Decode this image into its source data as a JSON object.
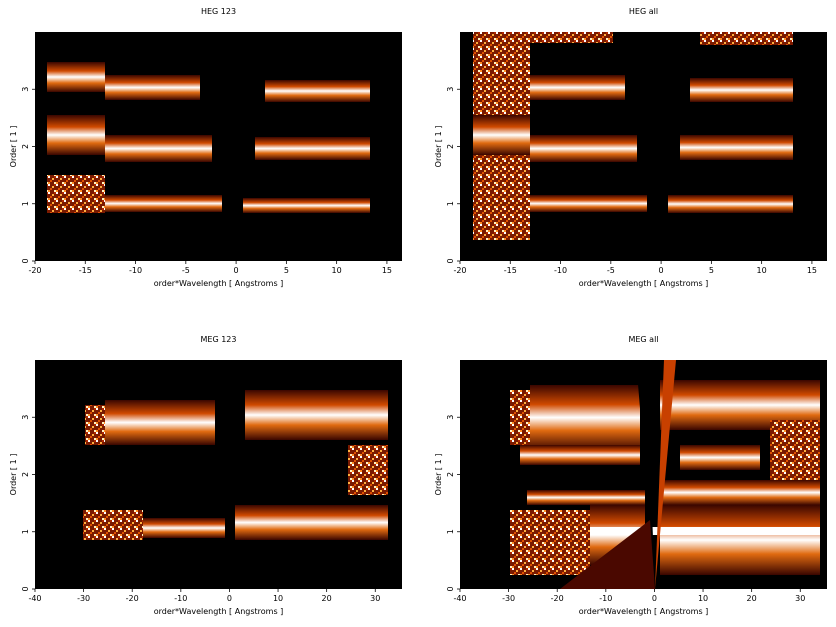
{
  "chart_data": [
    {
      "type": "image",
      "title": "HEG 123",
      "xlabel": "order*Wavelength [ Angstroms ]",
      "ylabel": "Order [ 1 ]",
      "xlim": [
        -20,
        16.5
      ],
      "ylim": [
        0,
        4
      ],
      "xticks": [
        -20,
        -15,
        -10,
        -5,
        0,
        5,
        10,
        15
      ],
      "yticks": [
        0,
        1,
        2,
        3
      ]
    },
    {
      "type": "image",
      "title": "HEG all",
      "xlabel": "order*Wavelength [ Angstroms ]",
      "ylabel": "Order [ 1 ]",
      "xlim": [
        -20,
        16.5
      ],
      "ylim": [
        0,
        4
      ],
      "xticks": [
        -20,
        -15,
        -10,
        -5,
        0,
        5,
        10,
        15
      ],
      "yticks": [
        0,
        1,
        2,
        3
      ]
    },
    {
      "type": "image",
      "title": "MEG 123",
      "xlabel": "order*Wavelength [ Angstroms ]",
      "ylabel": "Order [ 1 ]",
      "xlim": [
        -40,
        35.5
      ],
      "ylim": [
        0,
        4
      ],
      "xticks": [
        -40,
        -30,
        -20,
        -10,
        0,
        10,
        20,
        30
      ],
      "yticks": [
        0,
        1,
        2,
        3
      ]
    },
    {
      "type": "image",
      "title": "MEG all",
      "xlabel": "order*Wavelength [ Angstroms ]",
      "ylabel": "Order [ 1 ]",
      "xlim": [
        -40,
        35.5
      ],
      "ylim": [
        0,
        4
      ],
      "xticks": [
        -40,
        -30,
        -20,
        -10,
        0,
        10,
        20,
        30
      ],
      "yticks": [
        0,
        1,
        2,
        3
      ]
    }
  ]
}
